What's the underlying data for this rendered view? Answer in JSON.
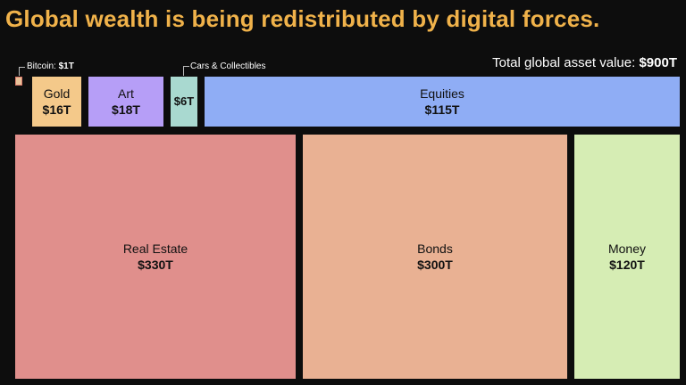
{
  "header": {
    "title": "Global wealth is being redistributed by digital forces."
  },
  "chart_data": {
    "type": "treemap",
    "total_label": "Total global asset value:",
    "total_value": "$900T",
    "unit": "T",
    "items": [
      {
        "name": "Bitcoin:",
        "display": "$1T",
        "value": 1,
        "color": "#e8c29a"
      },
      {
        "name": "Gold",
        "display": "$16T",
        "value": 16,
        "color": "#f4c98a"
      },
      {
        "name": "Art",
        "display": "$18T",
        "value": 18,
        "color": "#b69ef7"
      },
      {
        "name": "Cars & Collectibles",
        "display": "$6T",
        "value": 6,
        "color": "#a9d9d0"
      },
      {
        "name": "Equities",
        "display": "$115T",
        "value": 115,
        "color": "#8fadf5"
      },
      {
        "name": "Real Estate",
        "display": "$330T",
        "value": 330,
        "color": "#e08f8c"
      },
      {
        "name": "Bonds",
        "display": "$300T",
        "value": 300,
        "color": "#e9b193"
      },
      {
        "name": "Money",
        "display": "$120T",
        "value": 120,
        "color": "#d6edb4"
      }
    ]
  }
}
